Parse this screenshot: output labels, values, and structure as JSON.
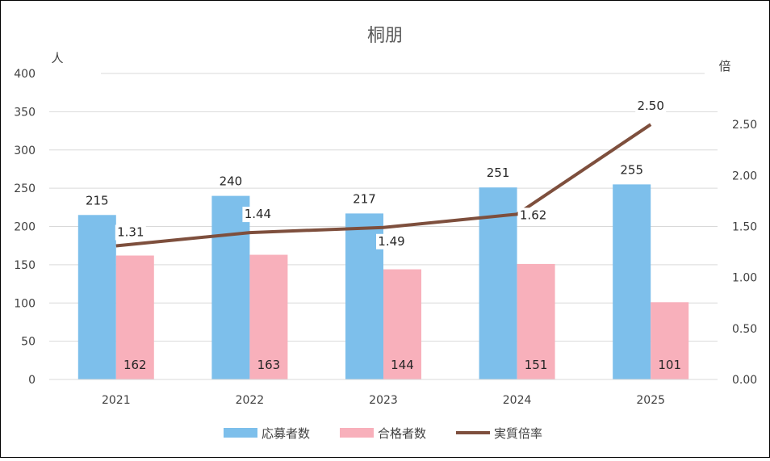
{
  "chart_data": {
    "type": "bar",
    "title": "桐朋",
    "categories": [
      "2021",
      "2022",
      "2023",
      "2024",
      "2025"
    ],
    "y_left_unit": "人",
    "y_right_unit": "倍",
    "y_left_ticks": [
      "400",
      "350",
      "300",
      "250",
      "200",
      "150",
      "100",
      "50",
      "0"
    ],
    "y_right_ticks": [
      "2.50",
      "2.00",
      "1.50",
      "1.00",
      "0.50",
      "0.00"
    ],
    "ylim_left": [
      0,
      400
    ],
    "ylim_right": [
      0,
      3.0
    ],
    "grid": true,
    "legend_position": "bottom",
    "series": [
      {
        "name": "応募者数",
        "kind": "bar",
        "axis": "left",
        "color": "#7dbfeb",
        "values": [
          215,
          240,
          217,
          251,
          255
        ],
        "labels": [
          "215",
          "240",
          "217",
          "251",
          "255"
        ]
      },
      {
        "name": "合格者数",
        "kind": "bar",
        "axis": "left",
        "color": "#f8b0bb",
        "values": [
          162,
          163,
          144,
          151,
          101
        ],
        "labels": [
          "162",
          "163",
          "144",
          "151",
          "101"
        ]
      },
      {
        "name": "実質倍率",
        "kind": "line",
        "axis": "right",
        "color": "#7e4f3d",
        "values": [
          1.31,
          1.44,
          1.49,
          1.62,
          2.5
        ],
        "labels": [
          "1.31",
          "1.44",
          "1.49",
          "1.62",
          "2.50"
        ]
      }
    ]
  }
}
